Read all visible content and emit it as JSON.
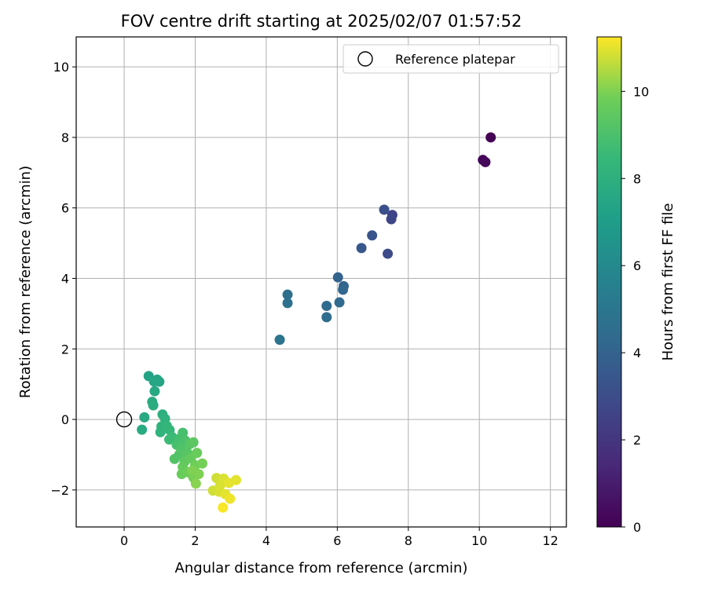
{
  "chart_data": {
    "type": "scatter",
    "title": "FOV centre drift starting at 2025/02/07 01:57:52",
    "xlabel": "Angular distance from reference (arcmin)",
    "ylabel": "Rotation from reference (arcmin)",
    "xlim": [
      -1.35,
      12.45
    ],
    "ylim": [
      -3.05,
      10.85
    ],
    "xticks": [
      0,
      2,
      4,
      6,
      8,
      10,
      12
    ],
    "yticks": [
      -2,
      0,
      2,
      4,
      6,
      8,
      10
    ],
    "grid": true,
    "legend": {
      "placement": "top-right",
      "entries": [
        "Reference platepar"
      ]
    },
    "reference_point": {
      "x": 0,
      "y": 0
    },
    "colorbar": {
      "label": "Hours from first FF file",
      "range": [
        0,
        11.25
      ],
      "ticks": [
        0,
        2,
        4,
        6,
        8,
        10
      ],
      "colormap": "viridis"
    },
    "points": [
      {
        "x": 10.32,
        "y": 8.0,
        "c": 0.05
      },
      {
        "x": 10.1,
        "y": 7.36,
        "c": 0.15
      },
      {
        "x": 10.17,
        "y": 7.3,
        "c": 0.25
      },
      {
        "x": 7.55,
        "y": 5.8,
        "c": 2.6
      },
      {
        "x": 7.52,
        "y": 5.68,
        "c": 2.7
      },
      {
        "x": 7.42,
        "y": 4.7,
        "c": 2.9
      },
      {
        "x": 7.32,
        "y": 5.95,
        "c": 3.1
      },
      {
        "x": 6.98,
        "y": 5.22,
        "c": 3.3
      },
      {
        "x": 6.68,
        "y": 4.86,
        "c": 3.5
      },
      {
        "x": 6.02,
        "y": 4.03,
        "c": 4.0
      },
      {
        "x": 6.18,
        "y": 3.78,
        "c": 4.1
      },
      {
        "x": 6.16,
        "y": 3.68,
        "c": 4.2
      },
      {
        "x": 6.06,
        "y": 3.32,
        "c": 4.3
      },
      {
        "x": 5.7,
        "y": 3.22,
        "c": 4.4
      },
      {
        "x": 5.7,
        "y": 2.9,
        "c": 4.5
      },
      {
        "x": 4.6,
        "y": 3.54,
        "c": 4.6
      },
      {
        "x": 4.6,
        "y": 3.3,
        "c": 4.7
      },
      {
        "x": 4.38,
        "y": 2.26,
        "c": 4.8
      },
      {
        "x": 0.69,
        "y": 1.23,
        "c": 7.3
      },
      {
        "x": 0.93,
        "y": 1.13,
        "c": 7.4
      },
      {
        "x": 0.99,
        "y": 1.07,
        "c": 7.5
      },
      {
        "x": 0.84,
        "y": 1.08,
        "c": 7.5
      },
      {
        "x": 0.86,
        "y": 0.8,
        "c": 7.6
      },
      {
        "x": 0.79,
        "y": 0.5,
        "c": 7.7
      },
      {
        "x": 0.82,
        "y": 0.4,
        "c": 7.8
      },
      {
        "x": 0.57,
        "y": 0.06,
        "c": 7.6
      },
      {
        "x": 0.5,
        "y": -0.29,
        "c": 7.7
      },
      {
        "x": 1.08,
        "y": 0.14,
        "c": 8.0
      },
      {
        "x": 1.15,
        "y": 0.02,
        "c": 8.1
      },
      {
        "x": 1.05,
        "y": -0.2,
        "c": 8.2
      },
      {
        "x": 1.2,
        "y": -0.18,
        "c": 8.3
      },
      {
        "x": 1.02,
        "y": -0.36,
        "c": 8.2
      },
      {
        "x": 1.28,
        "y": -0.3,
        "c": 8.4
      },
      {
        "x": 1.35,
        "y": -0.5,
        "c": 8.5
      },
      {
        "x": 1.27,
        "y": -0.57,
        "c": 8.6
      },
      {
        "x": 1.55,
        "y": -0.55,
        "c": 8.8
      },
      {
        "x": 1.65,
        "y": -0.38,
        "c": 8.9
      },
      {
        "x": 1.72,
        "y": -0.6,
        "c": 9.0
      },
      {
        "x": 1.48,
        "y": -0.72,
        "c": 8.9
      },
      {
        "x": 1.6,
        "y": -0.82,
        "c": 9.1
      },
      {
        "x": 1.85,
        "y": -0.7,
        "c": 9.3
      },
      {
        "x": 1.95,
        "y": -0.65,
        "c": 9.4
      },
      {
        "x": 1.78,
        "y": -0.95,
        "c": 9.3
      },
      {
        "x": 1.55,
        "y": -1.0,
        "c": 9.2
      },
      {
        "x": 1.42,
        "y": -1.12,
        "c": 9.2
      },
      {
        "x": 1.7,
        "y": -1.2,
        "c": 9.5
      },
      {
        "x": 1.88,
        "y": -1.1,
        "c": 9.6
      },
      {
        "x": 2.05,
        "y": -0.95,
        "c": 9.7
      },
      {
        "x": 1.65,
        "y": -1.35,
        "c": 9.6
      },
      {
        "x": 2.0,
        "y": -1.3,
        "c": 9.8
      },
      {
        "x": 2.2,
        "y": -1.25,
        "c": 9.9
      },
      {
        "x": 1.62,
        "y": -1.55,
        "c": 9.7
      },
      {
        "x": 1.8,
        "y": -1.5,
        "c": 9.8
      },
      {
        "x": 1.95,
        "y": -1.65,
        "c": 9.9
      },
      {
        "x": 2.1,
        "y": -1.55,
        "c": 10.0
      },
      {
        "x": 2.02,
        "y": -1.82,
        "c": 10.1
      },
      {
        "x": 1.92,
        "y": -1.45,
        "c": 10.0
      },
      {
        "x": 2.6,
        "y": -1.66,
        "c": 10.8
      },
      {
        "x": 2.8,
        "y": -1.68,
        "c": 10.9
      },
      {
        "x": 2.95,
        "y": -1.8,
        "c": 11.0
      },
      {
        "x": 3.15,
        "y": -1.72,
        "c": 11.0
      },
      {
        "x": 2.7,
        "y": -1.88,
        "c": 10.9
      },
      {
        "x": 2.5,
        "y": -2.02,
        "c": 10.8
      },
      {
        "x": 2.68,
        "y": -2.05,
        "c": 10.9
      },
      {
        "x": 2.85,
        "y": -2.12,
        "c": 11.0
      },
      {
        "x": 2.98,
        "y": -2.25,
        "c": 11.1
      },
      {
        "x": 2.78,
        "y": -2.5,
        "c": 11.2
      }
    ]
  }
}
